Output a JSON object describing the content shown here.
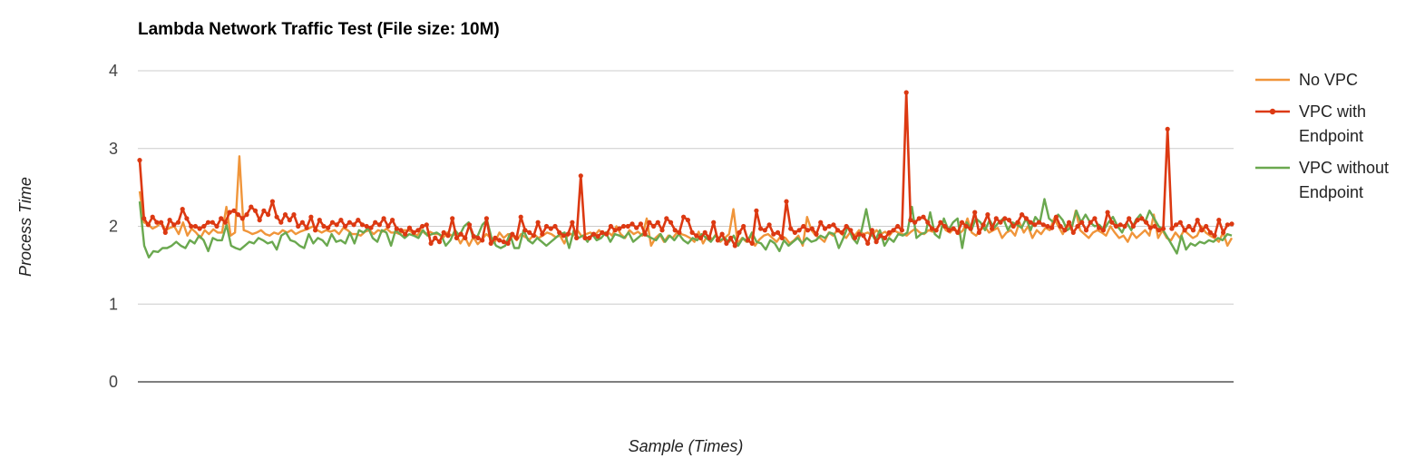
{
  "chart_data": {
    "type": "line",
    "title": "Lambda Network Traffic Test (File size: 10M)",
    "xlabel": "Sample (Times)",
    "ylabel": "Process Time",
    "ylim": [
      0,
      4
    ],
    "yticks": [
      "0",
      "1",
      "2",
      "3",
      "4"
    ],
    "grid": true,
    "legend_position": "right",
    "series": [
      {
        "name": "No VPC",
        "color": "#f0953a",
        "markers": false,
        "values": [
          2.45,
          2.05,
          2.02,
          1.97,
          2.0,
          2.05,
          1.95,
          1.98,
          2.0,
          1.9,
          2.05,
          1.88,
          1.97,
          1.92,
          1.85,
          1.95,
          1.9,
          1.96,
          1.92,
          1.92,
          2.25,
          1.88,
          1.92,
          2.9,
          1.95,
          1.93,
          1.9,
          1.92,
          1.95,
          1.9,
          1.88,
          1.92,
          1.9,
          1.95,
          1.92,
          1.95,
          1.9,
          1.93,
          1.95,
          1.97,
          2.0,
          1.95,
          1.92,
          1.95,
          1.93,
          1.95,
          1.9,
          1.98,
          1.95,
          1.9,
          1.9,
          1.88,
          1.93,
          1.95,
          1.9,
          1.95,
          1.93,
          1.97,
          1.92,
          1.92,
          1.9,
          1.95,
          1.95,
          1.92,
          1.88,
          1.95,
          1.9,
          1.93,
          1.9,
          1.9,
          1.85,
          1.92,
          1.88,
          1.9,
          1.78,
          1.87,
          1.75,
          1.86,
          1.77,
          1.83,
          1.9,
          1.85,
          1.8,
          1.92,
          1.85,
          1.9,
          1.88,
          1.82,
          1.9,
          1.86,
          1.83,
          1.9,
          1.85,
          1.88,
          1.92,
          1.9,
          1.86,
          1.88,
          1.78,
          1.92,
          1.88,
          1.95,
          1.87,
          1.9,
          1.92,
          1.88,
          1.95,
          1.9,
          1.93,
          1.88,
          2.0,
          1.9,
          1.85,
          1.95,
          1.9,
          1.93,
          1.88,
          2.1,
          1.75,
          1.85,
          1.9,
          1.8,
          1.88,
          1.85,
          1.92,
          1.9,
          1.88,
          1.85,
          1.8,
          1.93,
          1.78,
          1.88,
          1.82,
          1.9,
          1.8,
          1.85,
          1.9,
          2.22,
          1.78,
          1.85,
          1.8,
          1.88,
          1.75,
          1.83,
          1.88,
          1.9,
          1.85,
          1.8,
          1.88,
          1.85,
          1.78,
          1.82,
          1.88,
          1.75,
          2.12,
          1.95,
          1.88,
          1.85,
          1.8,
          1.92,
          1.88,
          1.95,
          1.9,
          1.85,
          1.93,
          1.88,
          1.95,
          1.9,
          1.92,
          1.88,
          1.95,
          1.9,
          1.93,
          1.88,
          1.95,
          1.92,
          1.9,
          1.88,
          1.93,
          1.97,
          1.92,
          1.9,
          1.95,
          1.93,
          1.97,
          2.05,
          1.95,
          1.92,
          1.98,
          1.9,
          1.95,
          2.1,
          1.92,
          1.88,
          1.95,
          2.0,
          1.92,
          1.95,
          1.98,
          1.85,
          1.92,
          1.95,
          1.88,
          2.05,
          1.92,
          2.0,
          1.85,
          1.95,
          1.9,
          1.98,
          1.95,
          2.1,
          2.0,
          1.9,
          2.02,
          1.95,
          2.2,
          1.95,
          1.9,
          1.85,
          1.92,
          1.95,
          1.92,
          1.88,
          2.0,
          1.92,
          1.85,
          1.88,
          1.8,
          1.92,
          1.85,
          1.9,
          1.95,
          1.88,
          2.15,
          1.85,
          1.95,
          1.85,
          1.82,
          1.92,
          1.85,
          1.95,
          1.9,
          1.85,
          1.88,
          2.0,
          1.92,
          1.88,
          1.85,
          1.8,
          1.92,
          1.75,
          1.85
        ]
      },
      {
        "name": "VPC with Endpoint",
        "color": "#dc3912",
        "markers": true,
        "values": [
          2.85,
          2.1,
          2.02,
          2.12,
          2.05,
          2.05,
          1.92,
          2.08,
          2.02,
          2.05,
          2.22,
          2.1,
          2.0,
          2.0,
          1.97,
          2.0,
          2.05,
          2.05,
          2.0,
          2.1,
          2.05,
          2.18,
          2.2,
          2.15,
          2.1,
          2.15,
          2.25,
          2.2,
          2.08,
          2.2,
          2.15,
          2.32,
          2.12,
          2.05,
          2.15,
          2.08,
          2.15,
          2.0,
          2.05,
          1.98,
          2.12,
          1.95,
          2.08,
          2.0,
          1.98,
          2.05,
          2.02,
          2.08,
          2.0,
          2.05,
          2.02,
          2.08,
          2.02,
          2.0,
          1.98,
          2.05,
          2.02,
          2.1,
          2.0,
          2.08,
          1.97,
          1.95,
          1.9,
          1.98,
          1.92,
          1.95,
          2.0,
          2.02,
          1.78,
          1.85,
          1.8,
          1.92,
          1.88,
          2.1,
          1.85,
          1.9,
          1.85,
          2.02,
          1.87,
          1.85,
          1.82,
          2.1,
          1.78,
          1.85,
          1.82,
          1.8,
          1.78,
          1.9,
          1.85,
          2.12,
          1.95,
          1.92,
          1.88,
          2.05,
          1.9,
          2.0,
          1.97,
          2.0,
          1.92,
          1.88,
          1.9,
          2.05,
          1.85,
          2.65,
          1.85,
          1.85,
          1.9,
          1.87,
          1.92,
          1.9,
          2.0,
          1.95,
          1.97,
          2.0,
          2.0,
          2.03,
          1.98,
          2.03,
          1.9,
          2.05,
          2.0,
          2.05,
          1.95,
          2.1,
          2.05,
          1.95,
          1.92,
          2.12,
          2.08,
          1.92,
          1.88,
          1.85,
          1.92,
          1.85,
          2.05,
          1.82,
          1.9,
          1.78,
          1.85,
          1.75,
          1.92,
          2.0,
          1.82,
          1.78,
          2.2,
          1.97,
          1.95,
          2.02,
          1.9,
          1.92,
          1.85,
          2.32,
          1.97,
          1.92,
          1.95,
          2.0,
          1.95,
          1.97,
          1.9,
          2.05,
          1.97,
          2.0,
          2.02,
          1.95,
          1.92,
          2.0,
          1.95,
          1.85,
          1.9,
          1.88,
          1.78,
          1.95,
          1.8,
          1.88,
          1.85,
          1.92,
          1.95,
          2.0,
          1.95,
          3.72,
          2.08,
          2.05,
          2.1,
          2.12,
          2.05,
          1.97,
          1.95,
          2.05,
          2.0,
          1.95,
          1.97,
          1.92,
          2.05,
          2.0,
          1.97,
          2.18,
          1.92,
          2.02,
          2.15,
          1.97,
          2.1,
          2.05,
          2.1,
          2.08,
          2.0,
          2.05,
          2.15,
          2.1,
          2.05,
          2.02,
          2.05,
          2.02,
          2.0,
          1.98,
          2.12,
          2.0,
          1.95,
          2.05,
          1.92,
          2.0,
          2.05,
          1.95,
          2.05,
          2.1,
          1.98,
          1.95,
          2.18,
          2.05,
          2.0,
          2.02,
          2.0,
          2.1,
          2.0,
          2.08,
          2.1,
          2.05,
          1.98,
          2.0,
          1.95,
          1.97,
          3.25,
          1.97,
          2.02,
          2.05,
          1.95,
          2.0,
          1.95,
          2.08,
          1.95,
          2.0,
          1.92,
          1.88,
          2.08,
          1.92,
          2.02,
          2.03
        ]
      },
      {
        "name": "VPC without Endpoint",
        "color": "#6aa84f",
        "markers": false,
        "values": [
          2.32,
          1.75,
          1.6,
          1.68,
          1.67,
          1.72,
          1.72,
          1.75,
          1.8,
          1.75,
          1.72,
          1.82,
          1.78,
          1.88,
          1.82,
          1.68,
          1.85,
          1.82,
          1.82,
          2.02,
          1.75,
          1.72,
          1.7,
          1.75,
          1.8,
          1.78,
          1.85,
          1.82,
          1.78,
          1.8,
          1.7,
          1.88,
          1.92,
          1.82,
          1.8,
          1.75,
          1.72,
          1.9,
          1.78,
          1.85,
          1.82,
          1.75,
          1.9,
          1.8,
          1.82,
          1.78,
          1.92,
          1.78,
          1.95,
          1.92,
          1.98,
          1.85,
          1.8,
          1.95,
          1.92,
          1.75,
          1.95,
          1.9,
          1.85,
          1.9,
          1.88,
          1.85,
          1.95,
          1.88,
          1.9,
          1.92,
          1.88,
          1.75,
          1.82,
          1.95,
          1.88,
          2.0,
          2.05,
          1.85,
          1.88,
          2.02,
          2.08,
          1.85,
          1.75,
          1.72,
          1.75,
          1.9,
          1.72,
          1.72,
          1.95,
          1.82,
          1.78,
          1.85,
          1.8,
          1.75,
          1.8,
          1.85,
          1.9,
          1.92,
          1.72,
          1.95,
          1.85,
          1.88,
          1.8,
          1.9,
          1.82,
          1.85,
          1.92,
          1.8,
          1.9,
          1.88,
          1.85,
          1.92,
          1.8,
          1.85,
          1.9,
          1.88,
          1.85,
          1.82,
          1.9,
          1.8,
          1.88,
          1.82,
          1.9,
          1.82,
          1.78,
          1.85,
          1.82,
          1.9,
          1.85,
          1.8,
          1.88,
          1.82,
          1.85,
          1.8,
          1.88,
          1.75,
          1.85,
          1.8,
          1.92,
          1.8,
          1.78,
          1.7,
          1.82,
          1.78,
          1.68,
          1.82,
          1.75,
          1.8,
          1.85,
          1.78,
          1.85,
          1.8,
          1.82,
          1.88,
          1.85,
          1.92,
          1.9,
          1.72,
          1.85,
          2.0,
          1.85,
          1.78,
          1.95,
          2.22,
          1.92,
          1.82,
          1.95,
          1.75,
          1.85,
          1.8,
          1.9,
          1.88,
          1.92,
          2.25,
          1.85,
          1.9,
          1.92,
          2.18,
          1.9,
          1.85,
          2.1,
          1.95,
          2.05,
          2.1,
          1.72,
          2.05,
          1.95,
          2.1,
          2.05,
          1.95,
          2.08,
          1.98,
          2.05,
          2.1,
          1.95,
          2.05,
          2.02,
          1.98,
          2.1,
          1.95,
          2.12,
          2.05,
          2.35,
          2.1,
          2.05,
          2.15,
          2.08,
          1.95,
          2.0,
          2.2,
          2.05,
          2.15,
          2.05,
          2.0,
          2.02,
          1.95,
          2.05,
          2.12,
          2.0,
          1.92,
          2.05,
          1.95,
          2.08,
          2.15,
          2.05,
          2.2,
          2.1,
          2.0,
          1.95,
          1.85,
          1.75,
          1.65,
          1.88,
          1.7,
          1.78,
          1.75,
          1.8,
          1.78,
          1.82,
          1.8,
          1.85,
          1.82,
          1.9,
          1.88
        ]
      }
    ]
  }
}
